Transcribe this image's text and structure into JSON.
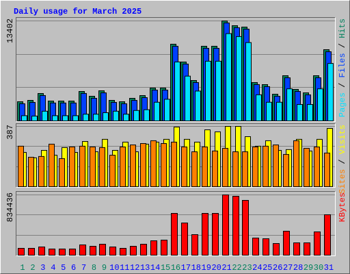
{
  "chart_data": [
    {
      "type": "bar",
      "title": "Daily usage for March 2025",
      "ylim": [
        0,
        13402
      ],
      "yticks": [
        13402
      ],
      "legend_separator": " / ",
      "series": [
        {
          "name": "Hits",
          "color": "#00805c",
          "label_color": "#00805c",
          "values": [
            2570,
            2754,
            3672,
            2662,
            2662,
            2662,
            3947,
            3305,
            4039,
            2754,
            2570,
            3029,
            3396,
            4406,
            4406,
            10281,
            7894,
            5416,
            10006,
            10006,
            13402,
            12760,
            12576,
            5141,
            4865,
            3580,
            6058,
            4223,
            3764,
            6058,
            9547
          ]
        },
        {
          "name": "Files",
          "color": "#0040ff",
          "label_color": "#0040ff",
          "values": [
            2300,
            2480,
            3400,
            2400,
            2400,
            2400,
            3680,
            3030,
            3760,
            2480,
            2300,
            2750,
            3120,
            4130,
            4130,
            10000,
            7620,
            5140,
            9730,
            9730,
            13130,
            12490,
            12300,
            4870,
            4590,
            3300,
            5780,
            3950,
            3490,
            5780,
            9270
          ]
        },
        {
          "name": "Pages",
          "color": "#00e0ff",
          "label_color": "#00e0ff",
          "values": [
            700,
            650,
            1300,
            700,
            700,
            700,
            900,
            900,
            1100,
            1300,
            900,
            1400,
            1500,
            2500,
            2900,
            7900,
            6000,
            4000,
            8000,
            8000,
            11700,
            11300,
            10500,
            3500,
            2500,
            2500,
            4300,
            2200,
            2200,
            4300,
            7700
          ]
        }
      ]
    },
    {
      "type": "bar",
      "ylim": [
        0,
        387
      ],
      "yticks": [
        387
      ],
      "legend_separator": " / ",
      "series": [
        {
          "name": "Visits",
          "color": "#ffff00",
          "label_color": "#ffff00",
          "values": [
            220,
            185,
            233,
            202,
            251,
            220,
            290,
            224,
            304,
            233,
            286,
            224,
            273,
            286,
            304,
            383,
            304,
            286,
            365,
            352,
            387,
            387,
            321,
            260,
            295,
            233,
            238,
            304,
            229,
            304,
            374
          ]
        },
        {
          "name": "Sites",
          "color": "#ff8000",
          "label_color": "#ff8000",
          "values": [
            260,
            189,
            194,
            273,
            180,
            255,
            260,
            255,
            251,
            202,
            255,
            268,
            277,
            295,
            277,
            286,
            255,
            224,
            255,
            229,
            246,
            224,
            224,
            255,
            260,
            268,
            207,
            295,
            246,
            255,
            216
          ]
        }
      ]
    },
    {
      "type": "bar",
      "ylim": [
        0,
        834436
      ],
      "yticks": [
        834436
      ],
      "categories": [
        "1",
        "2",
        "3",
        "4",
        "5",
        "6",
        "7",
        "8",
        "9",
        "10",
        "11",
        "12",
        "13",
        "14",
        "15",
        "16",
        "17",
        "18",
        "19",
        "20",
        "21",
        "22",
        "23",
        "24",
        "25",
        "26",
        "27",
        "28",
        "29",
        "30",
        "31"
      ],
      "category_color": "#0000ff",
      "highlight_color": "#00805c",
      "highlight_categories": [
        0,
        1,
        7,
        8,
        14,
        15,
        21,
        22,
        28,
        29
      ],
      "series": [
        {
          "name": "KBytes",
          "color": "#ff0000",
          "label_color": "#ff0000",
          "values": [
            94820,
            94820,
            113784,
            85338,
            85338,
            85338,
            142230,
            123266,
            151712,
            113784,
            94820,
            123266,
            151712,
            199122,
            208604,
            578402,
            445654,
            284460,
            578402,
            578402,
            834436,
            815452,
            758560,
            237050,
            227568,
            161194,
            331870,
            170676,
            170676,
            322388,
            559438
          ]
        }
      ]
    }
  ]
}
